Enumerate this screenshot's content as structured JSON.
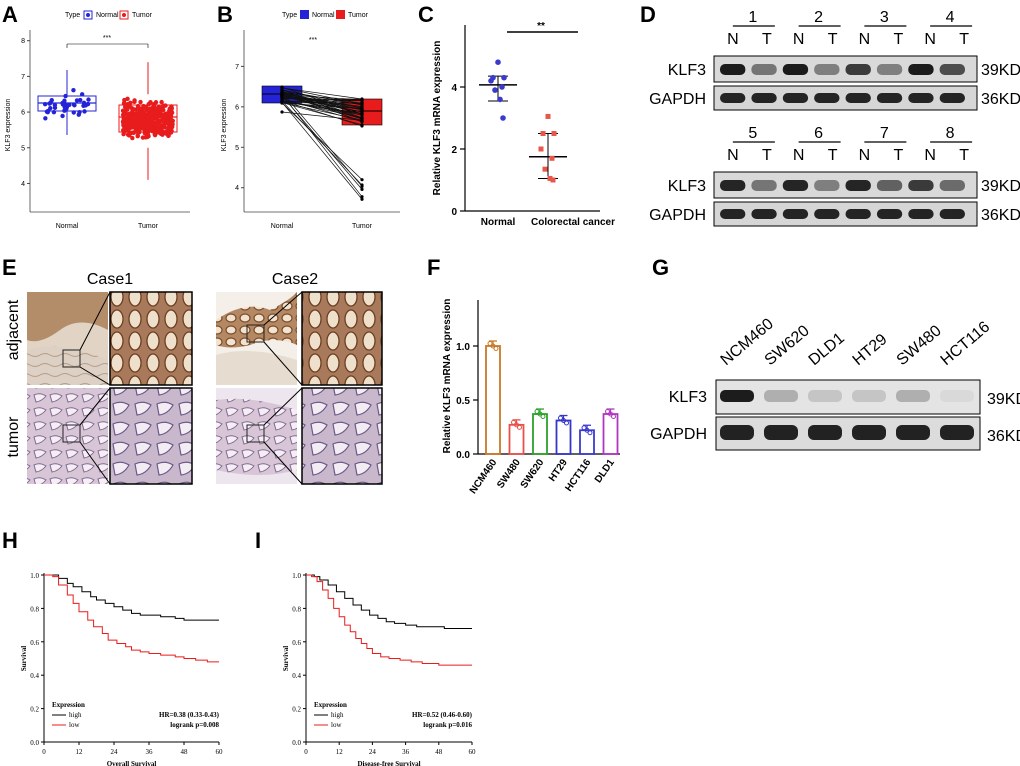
{
  "panels": {
    "A": "A",
    "B": "B",
    "C": "C",
    "D": "D",
    "E": "E",
    "F": "F",
    "G": "G",
    "H": "H",
    "I": "I"
  },
  "tcga": {
    "legend_type": "Type",
    "legend_normal": "Normal",
    "legend_tumor": "Tumor",
    "ylabel": "KLF3 expression",
    "sig": "***",
    "categories": [
      "Normal",
      "Tumor"
    ],
    "yticks": [
      4,
      5,
      6,
      7,
      8
    ],
    "yticks_b": [
      4,
      5,
      6,
      7
    ]
  },
  "colors": {
    "normal_blue": "#2424d6",
    "tumor_red": "#e81c1c",
    "c_normal": "#3a3acc",
    "c_tumor": "#e8574a",
    "f_bars": [
      "#c8782a",
      "#e8504a",
      "#2ca02c",
      "#3535c8",
      "#3b3bd0",
      "#b035c0"
    ]
  },
  "chart_data": [
    {
      "type": "scatter",
      "panel": "C",
      "ylabel": "Relative KLF3 mRNA expression",
      "categories": [
        "Normal",
        "Colorectal cancer"
      ],
      "yticks": [
        0,
        2,
        4
      ],
      "ylim": [
        0,
        5
      ],
      "series": [
        {
          "name": "Normal",
          "mean": 4.07,
          "sd_low": 3.55,
          "sd_high": 4.35,
          "values": [
            4.8,
            4.3,
            4.3,
            4.2,
            4.0,
            3.9,
            3.6,
            3.0
          ]
        },
        {
          "name": "Colorectal cancer",
          "mean": 1.75,
          "sd_low": 1.05,
          "sd_high": 2.5,
          "values": [
            3.05,
            2.5,
            2.5,
            2.0,
            1.7,
            1.35,
            1.05,
            1.0
          ]
        }
      ],
      "annotation": "**"
    },
    {
      "type": "bar",
      "panel": "F",
      "ylabel": "Relative KLF3 mRNA expression",
      "categories": [
        "NCM460",
        "SW480",
        "SW620",
        "HT29",
        "HCT116",
        "DLD1"
      ],
      "values": [
        1.0,
        0.27,
        0.37,
        0.31,
        0.22,
        0.37
      ],
      "yticks": [
        "0.0",
        "0.5",
        "1.0"
      ],
      "ylim": [
        0,
        1.5
      ]
    },
    {
      "type": "line",
      "panel": "H",
      "xlabel": "Overall Survival",
      "ylabel": "Survival",
      "xticks": [
        0,
        12,
        24,
        36,
        48,
        60
      ],
      "yticks": [
        "0.0",
        "0.2",
        "0.4",
        "0.6",
        "0.8",
        "1.0"
      ],
      "legend_title": "Expression",
      "stats": [
        "HR=0.38 (0.33-0.43)",
        "logrank p=0.008"
      ],
      "series": [
        {
          "name": "high",
          "x": [
            0,
            3,
            5,
            8,
            10,
            13,
            16,
            18,
            21,
            24,
            27,
            30,
            33,
            36,
            40,
            45,
            48,
            53,
            60
          ],
          "y": [
            1.0,
            1.0,
            0.98,
            0.95,
            0.93,
            0.9,
            0.87,
            0.85,
            0.83,
            0.81,
            0.79,
            0.77,
            0.76,
            0.76,
            0.75,
            0.74,
            0.73,
            0.73,
            0.73
          ]
        },
        {
          "name": "low",
          "x": [
            0,
            3,
            5,
            8,
            10,
            12,
            15,
            17,
            20,
            22,
            25,
            28,
            30,
            33,
            36,
            40,
            45,
            48,
            52,
            56,
            60
          ],
          "y": [
            1.0,
            0.99,
            0.94,
            0.88,
            0.83,
            0.78,
            0.73,
            0.69,
            0.65,
            0.61,
            0.59,
            0.57,
            0.55,
            0.54,
            0.53,
            0.52,
            0.51,
            0.5,
            0.49,
            0.48,
            0.48
          ]
        }
      ]
    },
    {
      "type": "line",
      "panel": "I",
      "xlabel": "Disease-free Survival",
      "ylabel": "Survival",
      "xticks": [
        0,
        12,
        24,
        36,
        48,
        60
      ],
      "yticks": [
        "0.0",
        "0.2",
        "0.4",
        "0.6",
        "0.8",
        "1.0"
      ],
      "legend_title": "Expression",
      "stats": [
        "HR=0.52 (0.46-0.60)",
        "logrank p=0.016"
      ],
      "series": [
        {
          "name": "high",
          "x": [
            0,
            3,
            5,
            8,
            11,
            14,
            17,
            20,
            23,
            26,
            29,
            32,
            36,
            40,
            45,
            50,
            55,
            60
          ],
          "y": [
            1.0,
            0.99,
            0.97,
            0.94,
            0.9,
            0.86,
            0.82,
            0.79,
            0.76,
            0.74,
            0.72,
            0.71,
            0.7,
            0.69,
            0.69,
            0.68,
            0.68,
            0.68
          ]
        },
        {
          "name": "low",
          "x": [
            0,
            2,
            4,
            6,
            8,
            10,
            12,
            14,
            16,
            18,
            20,
            22,
            24,
            27,
            30,
            34,
            38,
            42,
            48,
            54,
            60
          ],
          "y": [
            1.0,
            0.99,
            0.96,
            0.91,
            0.86,
            0.8,
            0.75,
            0.7,
            0.66,
            0.62,
            0.59,
            0.56,
            0.53,
            0.51,
            0.5,
            0.49,
            0.48,
            0.47,
            0.46,
            0.46,
            0.46
          ]
        }
      ]
    }
  ],
  "blot_d": {
    "lanes": [
      "N",
      "T"
    ],
    "top_pairs": [
      "1",
      "2",
      "3",
      "4"
    ],
    "bottom_pairs": [
      "5",
      "6",
      "7",
      "8"
    ],
    "row1": "KLF3",
    "row2": "GAPDH",
    "kd1": "39KD",
    "kd2": "36KD"
  },
  "ihc": {
    "case1": "Case1",
    "case2": "Case2",
    "row1": "adjacent",
    "row2": "tumor"
  },
  "blot_g": {
    "lines": [
      "NCM460",
      "SW620",
      "DLD1",
      "HT29",
      "SW480",
      "HCT116"
    ],
    "row1": "KLF3",
    "row2": "GAPDH",
    "kd1": "39KD",
    "kd2": "36KD"
  }
}
